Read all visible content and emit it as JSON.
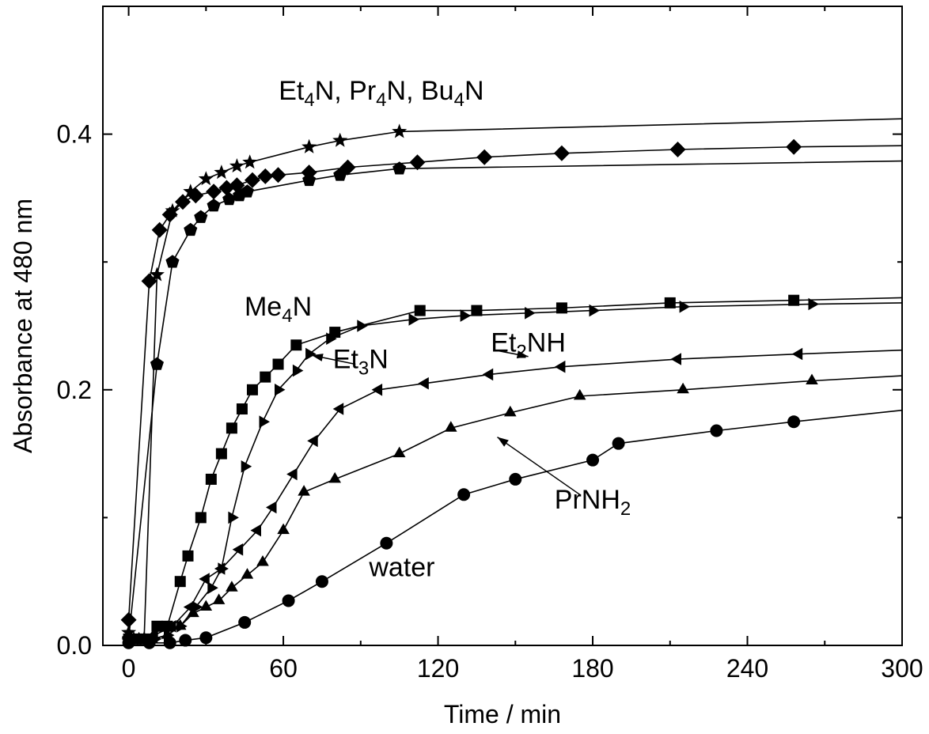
{
  "chart_data": {
    "type": "line",
    "title": "",
    "xlabel": "Time / min",
    "ylabel": "Absorbance at 480 nm",
    "xlim": [
      -10,
      300
    ],
    "ylim": [
      0.0,
      0.5
    ],
    "xticks": [
      0,
      60,
      120,
      180,
      240,
      300
    ],
    "xtick_labels": [
      "0",
      "60",
      "120",
      "180",
      "240",
      "300"
    ],
    "yticks": [
      0.0,
      0.2,
      0.4
    ],
    "ytick_labels": [
      "0.0",
      "0.2",
      "0.4"
    ],
    "grid": false,
    "legend": "none",
    "line_color": "#000000",
    "series": [
      {
        "marker": "star",
        "x": [
          0,
          2,
          6,
          11,
          17,
          24,
          30,
          36,
          42,
          47,
          70,
          82,
          105
        ],
        "y": [
          0.01,
          0.005,
          0.005,
          0.29,
          0.34,
          0.355,
          0.365,
          0.37,
          0.375,
          0.378,
          0.39,
          0.395,
          0.402
        ],
        "tail": [
          300,
          0.412
        ]
      },
      {
        "marker": "diamond",
        "x": [
          0,
          8,
          12,
          16,
          21,
          26,
          33,
          38,
          42,
          48,
          53,
          58,
          70,
          85,
          112,
          138,
          168,
          213,
          258
        ],
        "y": [
          0.02,
          0.285,
          0.325,
          0.337,
          0.347,
          0.352,
          0.355,
          0.358,
          0.36,
          0.364,
          0.367,
          0.368,
          0.37,
          0.374,
          0.378,
          0.382,
          0.385,
          0.388,
          0.39
        ],
        "tail": [
          300,
          0.391
        ]
      },
      {
        "marker": "pentagon",
        "x": [
          0,
          11,
          17,
          24,
          28,
          33,
          39,
          43,
          46,
          70,
          82,
          105
        ],
        "y": [
          0.005,
          0.22,
          0.3,
          0.325,
          0.335,
          0.344,
          0.349,
          0.352,
          0.355,
          0.364,
          0.368,
          0.373
        ],
        "tail": [
          300,
          0.379
        ]
      },
      {
        "marker": "square",
        "x": [
          0,
          3,
          7,
          11,
          15,
          20,
          23,
          28,
          32,
          36,
          40,
          44,
          48,
          53,
          58,
          65,
          80,
          113,
          135,
          168,
          210,
          258
        ],
        "y": [
          0.005,
          0.005,
          0.005,
          0.015,
          0.015,
          0.05,
          0.07,
          0.1,
          0.13,
          0.15,
          0.17,
          0.185,
          0.2,
          0.21,
          0.22,
          0.235,
          0.245,
          0.262,
          0.262,
          0.264,
          0.268,
          0.27
        ],
        "tail": [
          300,
          0.272
        ]
      },
      {
        "marker": "triangle-right",
        "x": [
          0,
          10,
          15,
          20,
          26,
          32,
          36,
          40,
          45,
          52,
          58,
          65,
          70,
          78,
          90,
          110,
          130,
          155,
          180,
          215,
          265
        ],
        "y": [
          0.005,
          0.005,
          0.008,
          0.015,
          0.03,
          0.045,
          0.06,
          0.1,
          0.14,
          0.175,
          0.2,
          0.215,
          0.228,
          0.24,
          0.25,
          0.255,
          0.258,
          0.26,
          0.262,
          0.265,
          0.267
        ],
        "tail": [
          300,
          0.268
        ]
      },
      {
        "marker": "triangle-left",
        "x": [
          0,
          5,
          10,
          17,
          24,
          30,
          36,
          43,
          50,
          56,
          64,
          72,
          82,
          97,
          115,
          140,
          168,
          213,
          260
        ],
        "y": [
          0.005,
          0.005,
          0.008,
          0.015,
          0.03,
          0.052,
          0.06,
          0.075,
          0.09,
          0.108,
          0.134,
          0.16,
          0.185,
          0.2,
          0.205,
          0.212,
          0.218,
          0.224,
          0.228
        ],
        "tail": [
          300,
          0.231
        ]
      },
      {
        "marker": "triangle-up",
        "x": [
          0,
          4,
          9,
          15,
          20,
          25,
          30,
          35,
          40,
          46,
          52,
          60,
          68,
          80,
          105,
          125,
          148,
          175,
          215,
          265
        ],
        "y": [
          0.005,
          0.005,
          0.005,
          0.008,
          0.015,
          0.025,
          0.03,
          0.035,
          0.045,
          0.055,
          0.065,
          0.09,
          0.12,
          0.13,
          0.15,
          0.17,
          0.182,
          0.195,
          0.2,
          0.207
        ],
        "tail": [
          300,
          0.211
        ]
      },
      {
        "marker": "circle",
        "x": [
          0,
          8,
          16,
          22,
          30,
          45,
          62,
          75,
          100,
          130,
          150,
          180,
          190,
          228,
          258
        ],
        "y": [
          0.002,
          0.002,
          0.002,
          0.004,
          0.006,
          0.018,
          0.035,
          0.05,
          0.08,
          0.118,
          0.13,
          0.145,
          0.158,
          0.168,
          0.175
        ],
        "tail": [
          300,
          0.184
        ]
      }
    ],
    "annotations": [
      {
        "text": "Et₄N, Pr₄N, Bu₄N",
        "parts": [
          [
            "Et",
            ""
          ],
          [
            "4",
            "sub"
          ],
          [
            "N, Pr",
            ""
          ],
          [
            "4",
            "sub"
          ],
          [
            "N, Bu",
            ""
          ],
          [
            "4",
            "sub"
          ],
          [
            "N",
            ""
          ]
        ],
        "x": 98,
        "y": 0.427
      },
      {
        "text": "Me₄N",
        "parts": [
          [
            "Me",
            ""
          ],
          [
            "4",
            "sub"
          ],
          [
            "N",
            ""
          ]
        ],
        "x": 58,
        "y": 0.258
      },
      {
        "text": "Et₃N",
        "parts": [
          [
            "Et",
            ""
          ],
          [
            "3",
            "sub"
          ],
          [
            "N",
            ""
          ]
        ],
        "x": 90,
        "y": 0.217
      },
      {
        "text": "Et₂NH",
        "parts": [
          [
            "Et",
            ""
          ],
          [
            "2",
            "sub"
          ],
          [
            "NH",
            ""
          ]
        ],
        "x": 155,
        "y": 0.23
      },
      {
        "text": "PrNH₂",
        "parts": [
          [
            "PrNH",
            ""
          ],
          [
            "2",
            "sub"
          ]
        ],
        "x": 180,
        "y": 0.107
      },
      {
        "text": "water",
        "parts": [
          [
            "water",
            ""
          ]
        ],
        "x": 106,
        "y": 0.054
      }
    ],
    "arrows": [
      {
        "from": [
          88,
          0.22
        ],
        "to": [
          71,
          0.227
        ]
      },
      {
        "from": [
          142,
          0.231
        ],
        "to": [
          155,
          0.226
        ]
      },
      {
        "from": [
          175,
          0.118
        ],
        "to": [
          143,
          0.163
        ]
      }
    ]
  }
}
